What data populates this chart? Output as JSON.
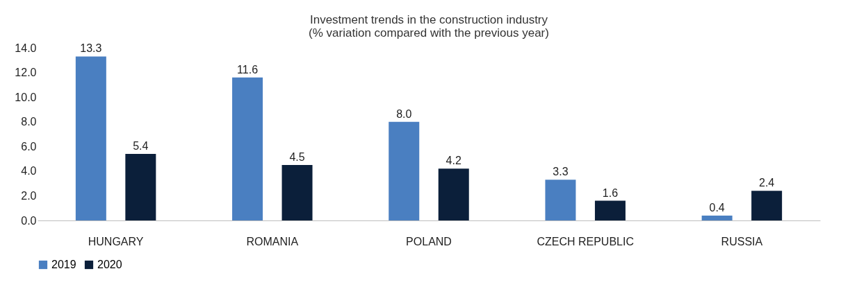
{
  "chart_data": {
    "type": "bar",
    "title": [
      "Investment trends in the construction industry",
      "(% variation compared with the previous year)"
    ],
    "categories": [
      "HUNGARY",
      "ROMANIA",
      "POLAND",
      "CZECH REPUBLIC",
      "RUSSIA"
    ],
    "series": [
      {
        "name": "2019",
        "color": "#4a7fc1",
        "values": [
          13.3,
          11.6,
          8.0,
          3.3,
          0.4
        ],
        "value_labels": [
          "13.3",
          "11.6",
          "8.0",
          "3.3",
          "0.4"
        ]
      },
      {
        "name": "2020",
        "color": "#0b1f3a",
        "values": [
          5.4,
          4.5,
          4.2,
          1.6,
          2.4
        ],
        "value_labels": [
          "5.4",
          "4.5",
          "4.2",
          "1.6",
          "2.4"
        ]
      }
    ],
    "ylim": [
      0,
      14
    ],
    "yticks": [
      {
        "value": 0,
        "label": "0.0"
      },
      {
        "value": 2,
        "label": "2.0"
      },
      {
        "value": 4,
        "label": "4.0"
      },
      {
        "value": 6,
        "label": "6.0"
      },
      {
        "value": 8,
        "label": "8.0"
      },
      {
        "value": 10,
        "label": "10.0"
      },
      {
        "value": 12,
        "label": "12.0"
      },
      {
        "value": 14,
        "label": "14.0"
      }
    ],
    "grid": false,
    "legend": "bottom"
  }
}
